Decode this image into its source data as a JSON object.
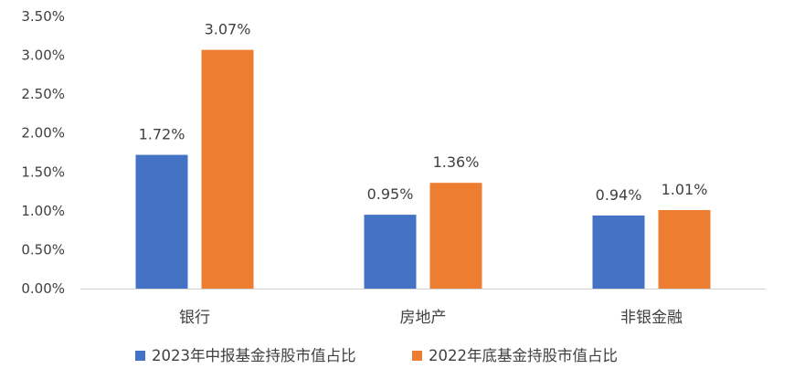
{
  "chart_data": {
    "type": "bar",
    "title": "",
    "xlabel": "",
    "ylabel": "",
    "categories": [
      "银行",
      "房地产",
      "非银金融"
    ],
    "series": [
      {
        "name": "2023年中报基金持股市值占比",
        "color": "#4472C4",
        "values": [
          1.72,
          0.95,
          0.94
        ],
        "labels": [
          "1.72%",
          "0.95%",
          "0.94%"
        ]
      },
      {
        "name": "2022年底基金持股市值占比",
        "color": "#ED7D31",
        "values": [
          3.07,
          1.36,
          1.01
        ],
        "labels": [
          "3.07%",
          "1.36%",
          "1.01%"
        ]
      }
    ],
    "ylim": [
      0,
      3.5
    ],
    "yticks": [
      0,
      0.5,
      1.0,
      1.5,
      2.0,
      2.5,
      3.0,
      3.5
    ],
    "ytick_labels": [
      "0.00%",
      "0.50%",
      "1.00%",
      "1.50%",
      "2.00%",
      "2.50%",
      "3.00%",
      "3.50%"
    ],
    "grid": false,
    "legend_position": "bottom"
  }
}
